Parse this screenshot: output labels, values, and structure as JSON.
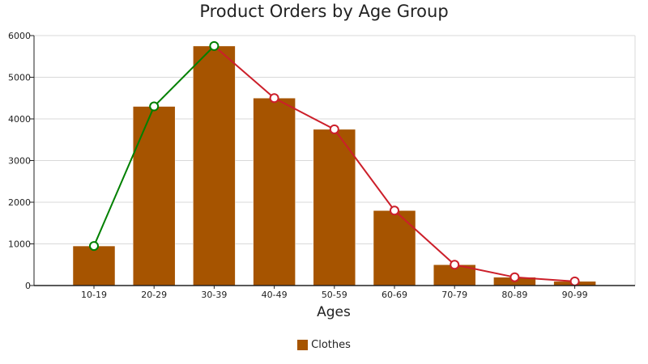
{
  "chart_data": {
    "type": "bar",
    "title": "Product Orders by Age Group",
    "xlabel": "Ages",
    "ylabel": "",
    "categories": [
      "10-19",
      "20-29",
      "30-39",
      "40-49",
      "50-59",
      "60-69",
      "70-79",
      "80-89",
      "90-99"
    ],
    "series": [
      {
        "name": "Clothes",
        "type": "bar",
        "values": [
          950,
          4300,
          5750,
          4500,
          3750,
          1800,
          500,
          200,
          100
        ],
        "color": "#a65400"
      },
      {
        "type": "line",
        "values": [
          950,
          4300,
          5750,
          4500,
          3750,
          1800,
          500,
          200,
          100
        ],
        "rising_color": "#008000",
        "falling_color": "#cc1f2a"
      }
    ],
    "ylim": [
      0,
      6000
    ],
    "yticks": [
      0,
      1000,
      2000,
      3000,
      4000,
      5000,
      6000
    ],
    "grid": true,
    "legend_position": "bottom-center"
  }
}
